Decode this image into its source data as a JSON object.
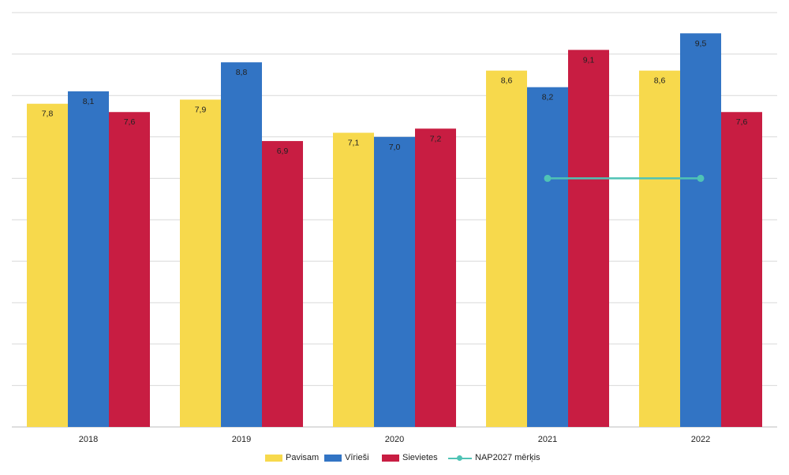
{
  "chart_data": {
    "type": "bar",
    "categories": [
      "2018",
      "2019",
      "2020",
      "2021",
      "2022"
    ],
    "series": [
      {
        "name": "Pavisam",
        "color": "#f7d94c",
        "values": [
          7.8,
          7.9,
          7.1,
          8.6,
          8.6
        ],
        "labels": [
          "7,8",
          "7,9",
          "7,1",
          "8,6",
          "8,6"
        ]
      },
      {
        "name": "Vīrieši",
        "color": "#3274c4",
        "values": [
          8.1,
          8.8,
          7.0,
          8.2,
          9.5
        ],
        "labels": [
          "8,1",
          "8,8",
          "7,0",
          "8,2",
          "9,5"
        ]
      },
      {
        "name": "Sievietes",
        "color": "#c81d42",
        "values": [
          7.6,
          6.9,
          7.2,
          9.1,
          7.6
        ],
        "labels": [
          "7,6",
          "6,9",
          "7,2",
          "9,1",
          "7,6"
        ]
      }
    ],
    "line_series": {
      "name": "NAP2027 mērķis",
      "color": "#4fc3b5",
      "points": [
        {
          "x": "2021",
          "y": 6.0
        },
        {
          "x": "2022",
          "y": 6.0
        }
      ]
    },
    "ylim": [
      0,
      10
    ],
    "grid": true,
    "legend_position": "bottom",
    "title": "",
    "xlabel": "",
    "ylabel": ""
  }
}
